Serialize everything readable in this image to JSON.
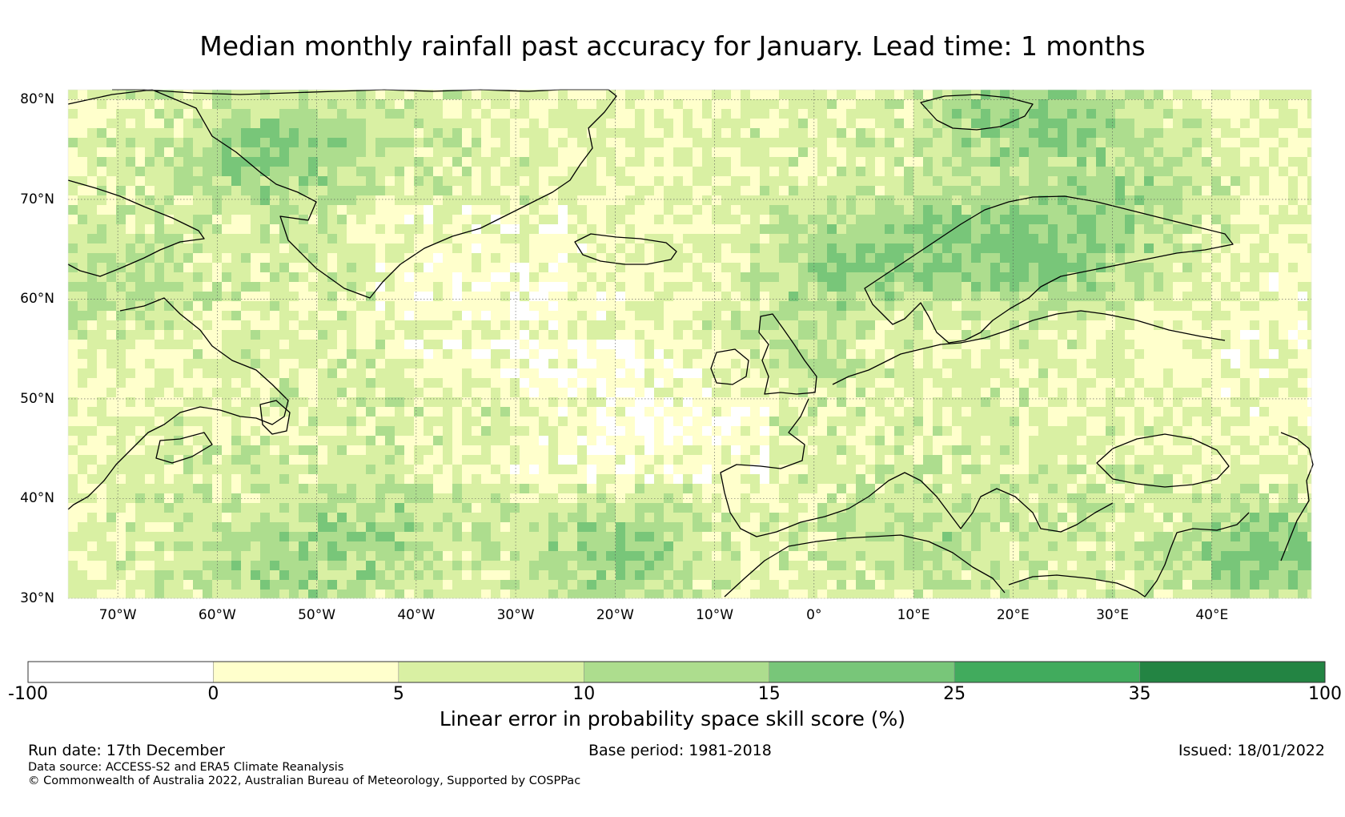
{
  "title": "Median monthly rainfall past accuracy for January. Lead time: 1 months",
  "map": {
    "lat_labels": [
      "80°N",
      "70°N",
      "60°N",
      "50°N",
      "40°N",
      "30°N"
    ],
    "lat_values": [
      80,
      70,
      60,
      50,
      40,
      30
    ],
    "lon_labels": [
      "70°W",
      "60°W",
      "50°W",
      "40°W",
      "30°W",
      "20°W",
      "10°W",
      "0°",
      "10°E",
      "20°E",
      "30°E",
      "40°E"
    ],
    "lon_values": [
      -70,
      -60,
      -50,
      -40,
      -30,
      -20,
      -10,
      0,
      10,
      20,
      30,
      40
    ],
    "lon_range": [
      -75,
      50
    ],
    "lat_range": [
      30,
      81
    ]
  },
  "colorbar": {
    "bins": [
      {
        "low": "-100",
        "high": "0",
        "color": "#ffffff"
      },
      {
        "low": "0",
        "high": "5",
        "color": "#ffffcc"
      },
      {
        "low": "5",
        "high": "10",
        "color": "#d9f0a3"
      },
      {
        "low": "10",
        "high": "15",
        "color": "#addd8e"
      },
      {
        "low": "15",
        "high": "25",
        "color": "#78c679"
      },
      {
        "low": "25",
        "high": "35",
        "color": "#41ab5d"
      },
      {
        "low": "35",
        "high": "100",
        "color": "#238443"
      }
    ],
    "tick_labels": [
      "-100",
      "0",
      "5",
      "10",
      "15",
      "25",
      "35",
      "100"
    ],
    "label": "Linear error in probability space skill score (%)"
  },
  "footer": {
    "run_date": "Run date: 17th December",
    "base_period": "Base period: 1981-2018",
    "issued": "Issued: 18/01/2022",
    "data_source": "Data source: ACCESS-S2 and ERA5 Climate Reanalysis",
    "copyright": "© Commonwealth of Australia 2022, Australian Bureau of Meteorology, Supported by COSPPac"
  }
}
